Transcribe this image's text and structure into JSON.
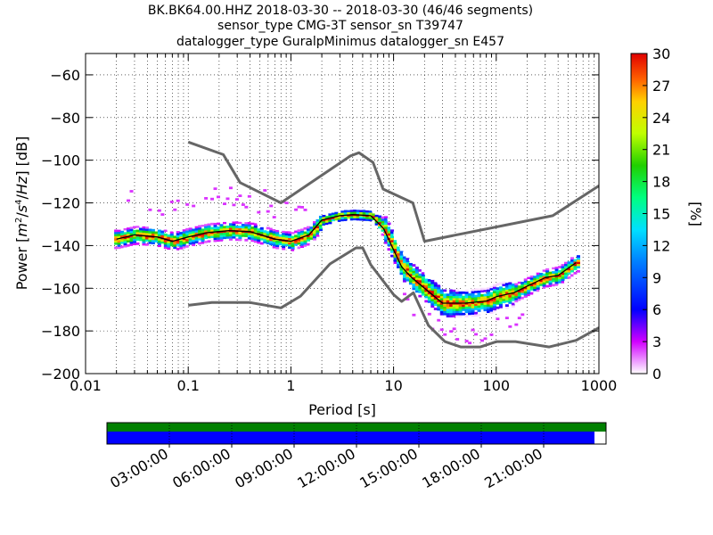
{
  "title_lines": [
    "BK.BK64.00.HHZ   2018-03-30 -- 2018-03-30  (46/46 segments)",
    "sensor_type CMG-3T sensor_sn T39747",
    "datalogger_type GuralpMinimus datalogger_sn E457"
  ],
  "chart_data": {
    "type": "heatmap",
    "title": "BK.BK64.00.HHZ   2018-03-30 -- 2018-03-30  (46/46 segments)",
    "xlabel": "Period [s]",
    "ylabel": "Power [m²/s⁴/Hz] [dB]",
    "x_scale": "log",
    "xlim": [
      0.01,
      1000
    ],
    "ylim": [
      -200,
      -50
    ],
    "x_tick_labels": [
      "0.01",
      "0.1",
      "1",
      "10",
      "100",
      "1000"
    ],
    "x_ticks": [
      0.01,
      0.1,
      1,
      10,
      100,
      1000
    ],
    "y_ticks": [
      -200,
      -180,
      -160,
      -140,
      -120,
      -100,
      -80,
      -60
    ],
    "y_tick_labels": [
      "−200",
      "−180",
      "−160",
      "−140",
      "−120",
      "−100",
      "−80",
      "−60"
    ],
    "grid": true,
    "colorbar": {
      "label": "[%]",
      "range": [
        0,
        30
      ],
      "ticks": [
        0,
        3,
        6,
        9,
        12,
        15,
        18,
        21,
        24,
        27,
        30
      ]
    },
    "series": [
      {
        "role": "noise-model-high",
        "color": "#666666",
        "points": [
          [
            0.1,
            -91.5
          ],
          [
            0.22,
            -97.4
          ],
          [
            0.32,
            -110.5
          ],
          [
            0.8,
            -120
          ],
          [
            3.8,
            -98
          ],
          [
            4.6,
            -96.5
          ],
          [
            6.3,
            -101
          ],
          [
            7.9,
            -113.5
          ],
          [
            15.4,
            -120
          ],
          [
            20,
            -138
          ],
          [
            354.8,
            -126
          ],
          [
            1000,
            -112
          ]
        ]
      },
      {
        "role": "noise-model-low",
        "color": "#666666",
        "points": [
          [
            0.1,
            -168
          ],
          [
            0.17,
            -166.7
          ],
          [
            0.4,
            -166.7
          ],
          [
            0.8,
            -169.2
          ],
          [
            1.24,
            -163.7
          ],
          [
            2.4,
            -148.6
          ],
          [
            4.3,
            -141.1
          ],
          [
            5.0,
            -141.1
          ],
          [
            6.0,
            -149
          ],
          [
            10.0,
            -163
          ],
          [
            12.0,
            -166.2
          ],
          [
            15.6,
            -162.1
          ],
          [
            21.9,
            -177.5
          ],
          [
            31.6,
            -185
          ],
          [
            45,
            -187.5
          ],
          [
            70,
            -187.5
          ],
          [
            101,
            -185
          ],
          [
            154,
            -185
          ],
          [
            328,
            -187.5
          ],
          [
            600,
            -184.4
          ],
          [
            1000,
            -178.5
          ]
        ]
      },
      {
        "role": "median",
        "color": "#000000",
        "points": [
          [
            0.02,
            -137
          ],
          [
            0.03,
            -135
          ],
          [
            0.05,
            -136
          ],
          [
            0.07,
            -138
          ],
          [
            0.1,
            -136
          ],
          [
            0.15,
            -134
          ],
          [
            0.25,
            -133
          ],
          [
            0.4,
            -133.5
          ],
          [
            0.7,
            -137
          ],
          [
            1.0,
            -138
          ],
          [
            1.5,
            -135
          ],
          [
            2.0,
            -128
          ],
          [
            3.0,
            -126
          ],
          [
            4.0,
            -125.5
          ],
          [
            6.0,
            -126
          ],
          [
            8.0,
            -132
          ],
          [
            10.0,
            -142
          ],
          [
            12.0,
            -150
          ],
          [
            15.0,
            -155
          ],
          [
            20.0,
            -160
          ],
          [
            30.0,
            -167
          ],
          [
            50.0,
            -167
          ],
          [
            80.0,
            -166
          ],
          [
            100,
            -164
          ],
          [
            150,
            -162
          ],
          [
            200,
            -159
          ],
          [
            300,
            -155
          ],
          [
            400,
            -154
          ],
          [
            600,
            -148
          ]
        ]
      }
    ],
    "time_axis": {
      "tick_labels": [
        "03:00:00",
        "06:00:00",
        "09:00:00",
        "12:00:00",
        "15:00:00",
        "18:00:00",
        "21:00:00"
      ],
      "data_coverage": 1.0,
      "gap_bar_coverage": 0.975,
      "colors": {
        "coverage": "#008000",
        "data": "#0000ff"
      }
    }
  }
}
